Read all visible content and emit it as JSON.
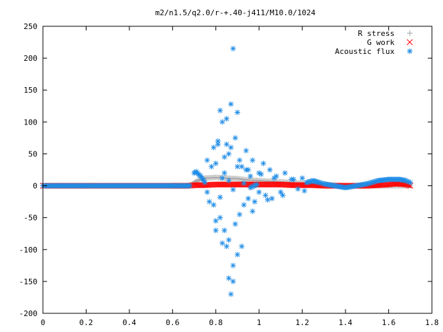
{
  "chart_data": {
    "type": "scatter",
    "title": "m2/n1.5/q2.0/r-+.40-j411/M10.0/1024",
    "xlabel": "",
    "ylabel": "",
    "xlim": [
      0,
      1.8
    ],
    "ylim": [
      -200,
      250
    ],
    "xticks": [
      "0",
      "0.2",
      "0.4",
      "0.6",
      "0.8",
      "1",
      "1.2",
      "1.4",
      "1.6",
      "1.8"
    ],
    "yticks": [
      "250",
      "200",
      "150",
      "100",
      "50",
      "0",
      "-50",
      "-100",
      "-150",
      "-200"
    ],
    "grid": false,
    "legend_position": "top-right",
    "series": [
      {
        "name": "R stress",
        "marker": "plus",
        "color": "#a0a0a0",
        "x": [
          0.0,
          0.1,
          0.2,
          0.3,
          0.4,
          0.5,
          0.6,
          0.68,
          0.7,
          0.72,
          0.75,
          0.8,
          0.85,
          0.9,
          0.95,
          1.0,
          1.05,
          1.1,
          1.15,
          1.2,
          1.25,
          1.3,
          1.35,
          1.4,
          1.45,
          1.5,
          1.55,
          1.6,
          1.65,
          1.7
        ],
        "y": [
          0,
          0,
          0,
          0,
          0,
          0,
          0,
          0,
          5,
          9,
          12,
          13,
          12,
          11,
          9,
          8,
          7,
          6,
          5,
          4,
          3,
          2,
          1,
          0,
          0,
          0,
          0,
          0,
          0,
          0
        ]
      },
      {
        "name": "G work",
        "marker": "cross",
        "color": "#ff0000",
        "x": [
          0.0,
          0.1,
          0.2,
          0.3,
          0.4,
          0.5,
          0.6,
          0.68,
          0.7,
          0.75,
          0.8,
          0.85,
          0.9,
          0.95,
          1.0,
          1.05,
          1.1,
          1.15,
          1.2,
          1.25,
          1.3,
          1.35,
          1.4,
          1.45,
          1.5,
          1.55,
          1.6,
          1.62,
          1.65,
          1.68,
          1.7
        ],
        "y": [
          0,
          0,
          0,
          0,
          0,
          0,
          0,
          0,
          1,
          1,
          2,
          2,
          2,
          2,
          2,
          2,
          2,
          1,
          1,
          1,
          0,
          0,
          0,
          0,
          0,
          1,
          2,
          3,
          3,
          2,
          0
        ]
      },
      {
        "name": "Acoustic flux",
        "marker": "star",
        "color": "#1e8ce6",
        "x": [
          0.0,
          0.05,
          0.1,
          0.15,
          0.2,
          0.25,
          0.3,
          0.35,
          0.4,
          0.45,
          0.5,
          0.55,
          0.6,
          0.65,
          0.68,
          0.7,
          0.71,
          0.72,
          0.73,
          0.74,
          0.75,
          0.76,
          0.77,
          0.78,
          0.79,
          0.8,
          0.8,
          0.81,
          0.82,
          0.82,
          0.83,
          0.83,
          0.84,
          0.84,
          0.85,
          0.85,
          0.86,
          0.86,
          0.87,
          0.87,
          0.88,
          0.88,
          0.89,
          0.89,
          0.9,
          0.9,
          0.91,
          0.91,
          0.92,
          0.93,
          0.94,
          0.95,
          0.95,
          0.96,
          0.97,
          0.98,
          1.0,
          1.0,
          1.02,
          1.03,
          1.05,
          1.06,
          1.08,
          1.1,
          1.12,
          1.15,
          1.18,
          1.2,
          1.22,
          1.25,
          1.28,
          1.3,
          1.35,
          1.4,
          1.45,
          1.5,
          1.55,
          1.6,
          1.65,
          1.68,
          1.7,
          0.76,
          0.79,
          0.81,
          0.8,
          0.84,
          0.85,
          0.86,
          0.87,
          0.88,
          0.9,
          0.92,
          0.94,
          0.97,
          1.01,
          1.04,
          1.07,
          1.11,
          1.16,
          1.21,
          1.26,
          0.83,
          0.82,
          0.86,
          0.88,
          0.93,
          0.96,
          0.99
        ],
        "y": [
          0,
          0,
          0,
          0,
          0,
          0,
          0,
          0,
          0,
          0,
          0,
          0,
          0,
          0,
          0,
          20,
          22,
          18,
          15,
          10,
          5,
          -10,
          -25,
          30,
          60,
          35,
          -70,
          65,
          118,
          -50,
          100,
          -90,
          45,
          -70,
          105,
          -95,
          50,
          -85,
          128,
          -170,
          215,
          -150,
          75,
          -60,
          115,
          -108,
          40,
          -45,
          30,
          -30,
          55,
          25,
          -20,
          15,
          40,
          -25,
          20,
          -10,
          35,
          -15,
          25,
          -20,
          15,
          -10,
          20,
          10,
          -5,
          12,
          5,
          8,
          5,
          3,
          0,
          -3,
          0,
          3,
          8,
          10,
          10,
          8,
          5,
          40,
          -30,
          70,
          -55,
          20,
          65,
          -145,
          60,
          -125,
          30,
          -95,
          25,
          -40,
          18,
          -22,
          12,
          -15,
          10,
          -8,
          6,
          12,
          -18,
          8,
          -6,
          4,
          -3,
          2
        ]
      }
    ]
  }
}
